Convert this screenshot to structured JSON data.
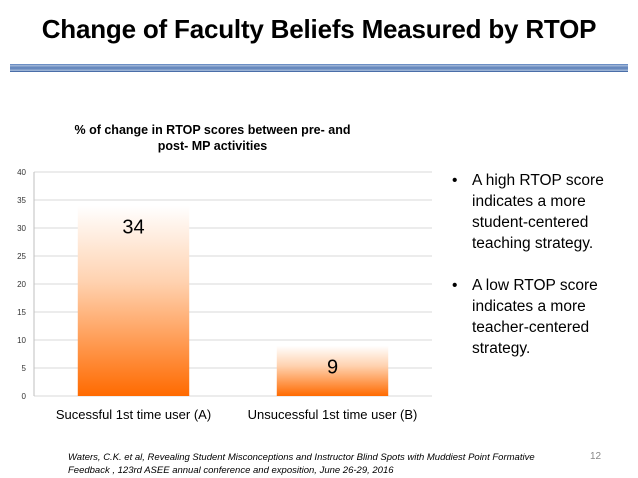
{
  "slide": {
    "title": "Change of Faculty Beliefs Measured by RTOP",
    "page_number": "12",
    "citation_line1": "Waters, C.K. et al, Revealing Student Misconceptions and Instructor Blind Spots with Muddiest Point Formative",
    "citation_line2": "Feedback ,  123rd ASEE annual conference and exposition, June 26-29, 2016"
  },
  "bullets": [
    "A high RTOP score indicates a more student-centered teaching strategy.",
    "A low RTOP score indicates a more teacher-centered strategy."
  ],
  "chart_data": {
    "type": "bar",
    "title_line1": "% of change in RTOP scores between pre- and",
    "title_line2": "post- MP activities",
    "categories": [
      "Sucessful 1st time user (A)",
      "Unsucessful 1st time user (B)"
    ],
    "values": [
      34,
      9
    ],
    "data_labels": [
      "34",
      "9"
    ],
    "ylim": [
      0,
      40
    ],
    "yticks": [
      0,
      5,
      10,
      15,
      20,
      25,
      30,
      35,
      40
    ],
    "gridlines": true,
    "colors": {
      "bar_top": "#ffffff",
      "bar_bottom": "#ff6a00",
      "grid": "#d9d9d9"
    }
  }
}
